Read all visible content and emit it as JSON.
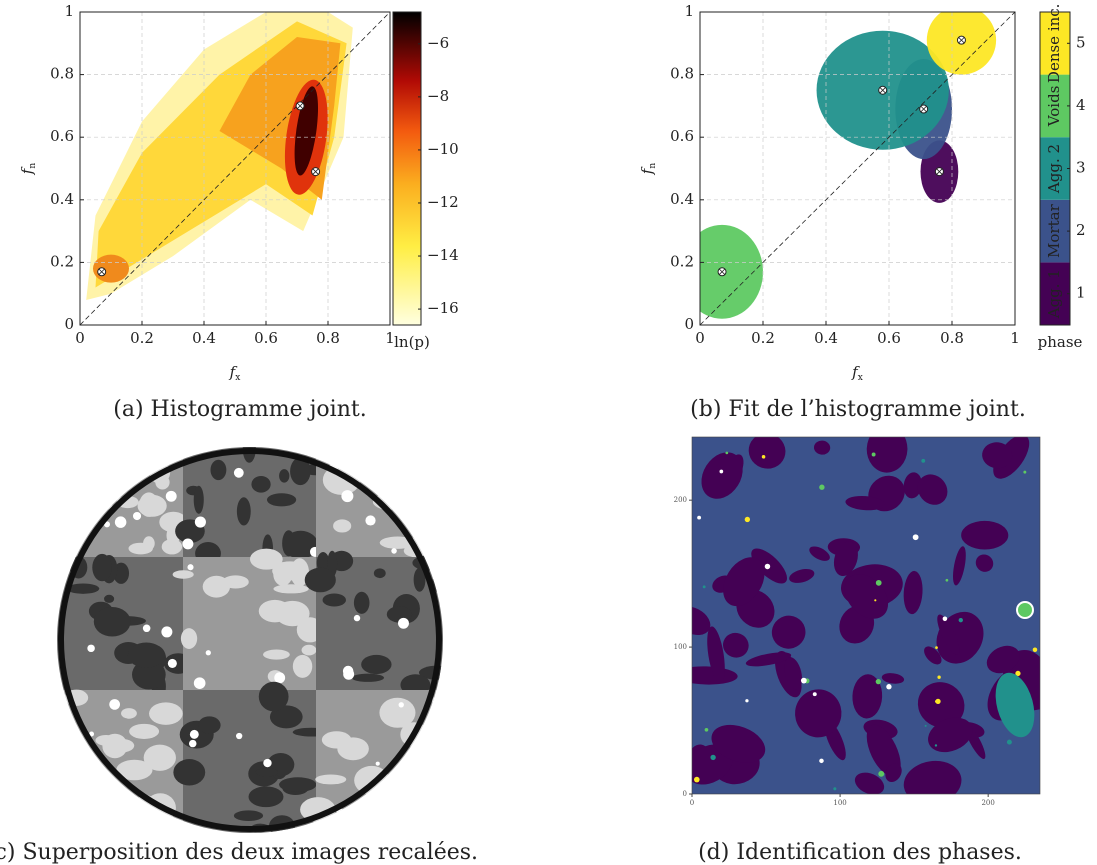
{
  "chart_data": [
    {
      "type": "heatmap",
      "caption": "(a) Histogramme joint.",
      "x_label": {
        "symbol": "f",
        "sub": "x"
      },
      "y_label": {
        "symbol": "f",
        "sub": "n"
      },
      "xlim": [
        0,
        1
      ],
      "ylim": [
        0,
        1
      ],
      "xticks": [
        0,
        0.2,
        0.4,
        0.6,
        0.8,
        1
      ],
      "yticks": [
        0,
        0.2,
        0.4,
        0.6,
        0.8,
        1
      ],
      "grid": true,
      "points": {
        "x": [
          0.07,
          0.71,
          0.76
        ],
        "y": [
          0.17,
          0.7,
          0.49
        ]
      },
      "colorbar": {
        "label": "ln(p)",
        "lim": [
          -16.6,
          -4.8
        ],
        "ticks": [
          {
            "value": -6,
            "label": "−6"
          },
          {
            "value": -8,
            "label": "−8"
          },
          {
            "value": -10,
            "label": "−10"
          },
          {
            "value": -12,
            "label": "−12"
          },
          {
            "value": -14,
            "label": "−14"
          },
          {
            "value": -16,
            "label": "−16"
          }
        ]
      }
    },
    {
      "type": "phase-map",
      "caption": "(b) Fit de l’histogramme joint.",
      "x_label": {
        "symbol": "f",
        "sub": "x"
      },
      "y_label": {
        "symbol": "f",
        "sub": "n"
      },
      "xlim": [
        0,
        1
      ],
      "ylim": [
        0,
        1
      ],
      "xticks": [
        0,
        0.2,
        0.4,
        0.6,
        0.8,
        1
      ],
      "yticks": [
        0,
        0.2,
        0.4,
        0.6,
        0.8,
        1
      ],
      "grid": true,
      "series": [
        {
          "name": "Agg. 1",
          "color": "#440154",
          "x": 0.76,
          "y": 0.49,
          "rx": 0.06,
          "ry": 0.1
        },
        {
          "name": "Mortar",
          "color": "#3b528b",
          "x": 0.71,
          "y": 0.69,
          "rx": 0.09,
          "ry": 0.16
        },
        {
          "name": "Agg. 2",
          "color": "#21918c",
          "x": 0.58,
          "y": 0.75,
          "rx": 0.21,
          "ry": 0.19
        },
        {
          "name": "Voids",
          "color": "#5ec962",
          "x": 0.07,
          "y": 0.17,
          "rx": 0.13,
          "ry": 0.15
        },
        {
          "name": "Dense inc.",
          "color": "#fde725",
          "x": 0.83,
          "y": 0.91,
          "rx": 0.11,
          "ry": 0.11
        }
      ],
      "points": {
        "x": [
          0.07,
          0.58,
          0.71,
          0.76,
          0.83
        ],
        "y": [
          0.17,
          0.75,
          0.69,
          0.49,
          0.91
        ]
      },
      "colorbar": {
        "label": "phase",
        "lim": [
          0.5,
          5.5
        ],
        "ticks": [
          1,
          2,
          3,
          4,
          5
        ]
      }
    }
  ],
  "figures": [
    {
      "caption": "(c) Superposition des deux images recalées."
    },
    {
      "caption": "(d) Identification des phases.",
      "xlim": [
        0,
        235
      ],
      "ylim": [
        0,
        243
      ],
      "xticks": [
        0,
        100,
        200
      ],
      "yticks": [
        0,
        100,
        200
      ]
    }
  ]
}
